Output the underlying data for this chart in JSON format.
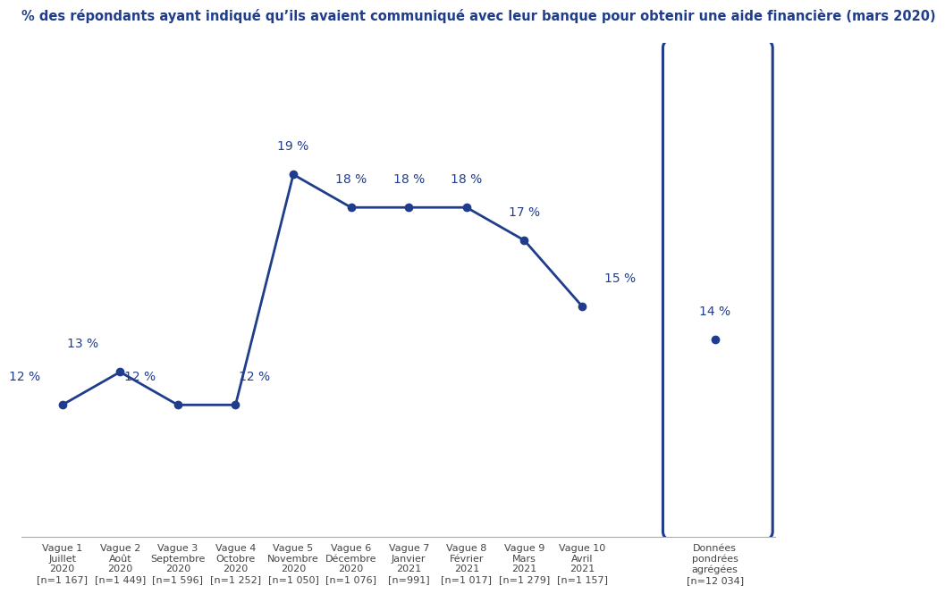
{
  "title": "% des répondants ayant indiqué qu’ils avaient communiqué avec leur banque pour obtenir une aide financière (mars 2020)",
  "x_labels": [
    "Vague 1\nJuillet\n2020\n[n=1 167]",
    "Vague 2\nAoût\n2020\n[n=1 449]",
    "Vague 3\nSeptembre\n2020\n[n=1 596]",
    "Vague 4\nOctobre\n2020\n[n=1 252]",
    "Vague 5\nNovembre\n2020\n[n=1 050]",
    "Vague 6\nDécembre\n2020\n[n=1 076]",
    "Vague 7\nJanvier\n2021\n[n=991]",
    "Vague 8\nFévrier\n2021\n[n=1 017]",
    "Vague 9\nMars\n2021\n[n=1 279]",
    "Vague 10\nAvril\n2021\n[n=1 157]"
  ],
  "x_label_last": "Données\npondrées\nagrégées\n[n=12 034]",
  "values": [
    12,
    13,
    12,
    12,
    19,
    18,
    18,
    18,
    17,
    15
  ],
  "value_last": 14,
  "line_color": "#1f3d8c",
  "marker_color": "#1f3d8c",
  "title_color": "#1f3d8c",
  "background_color": "#ffffff",
  "ylim": [
    8,
    23
  ],
  "title_fontsize": 10.5,
  "label_fontsize": 8,
  "value_fontsize": 10
}
